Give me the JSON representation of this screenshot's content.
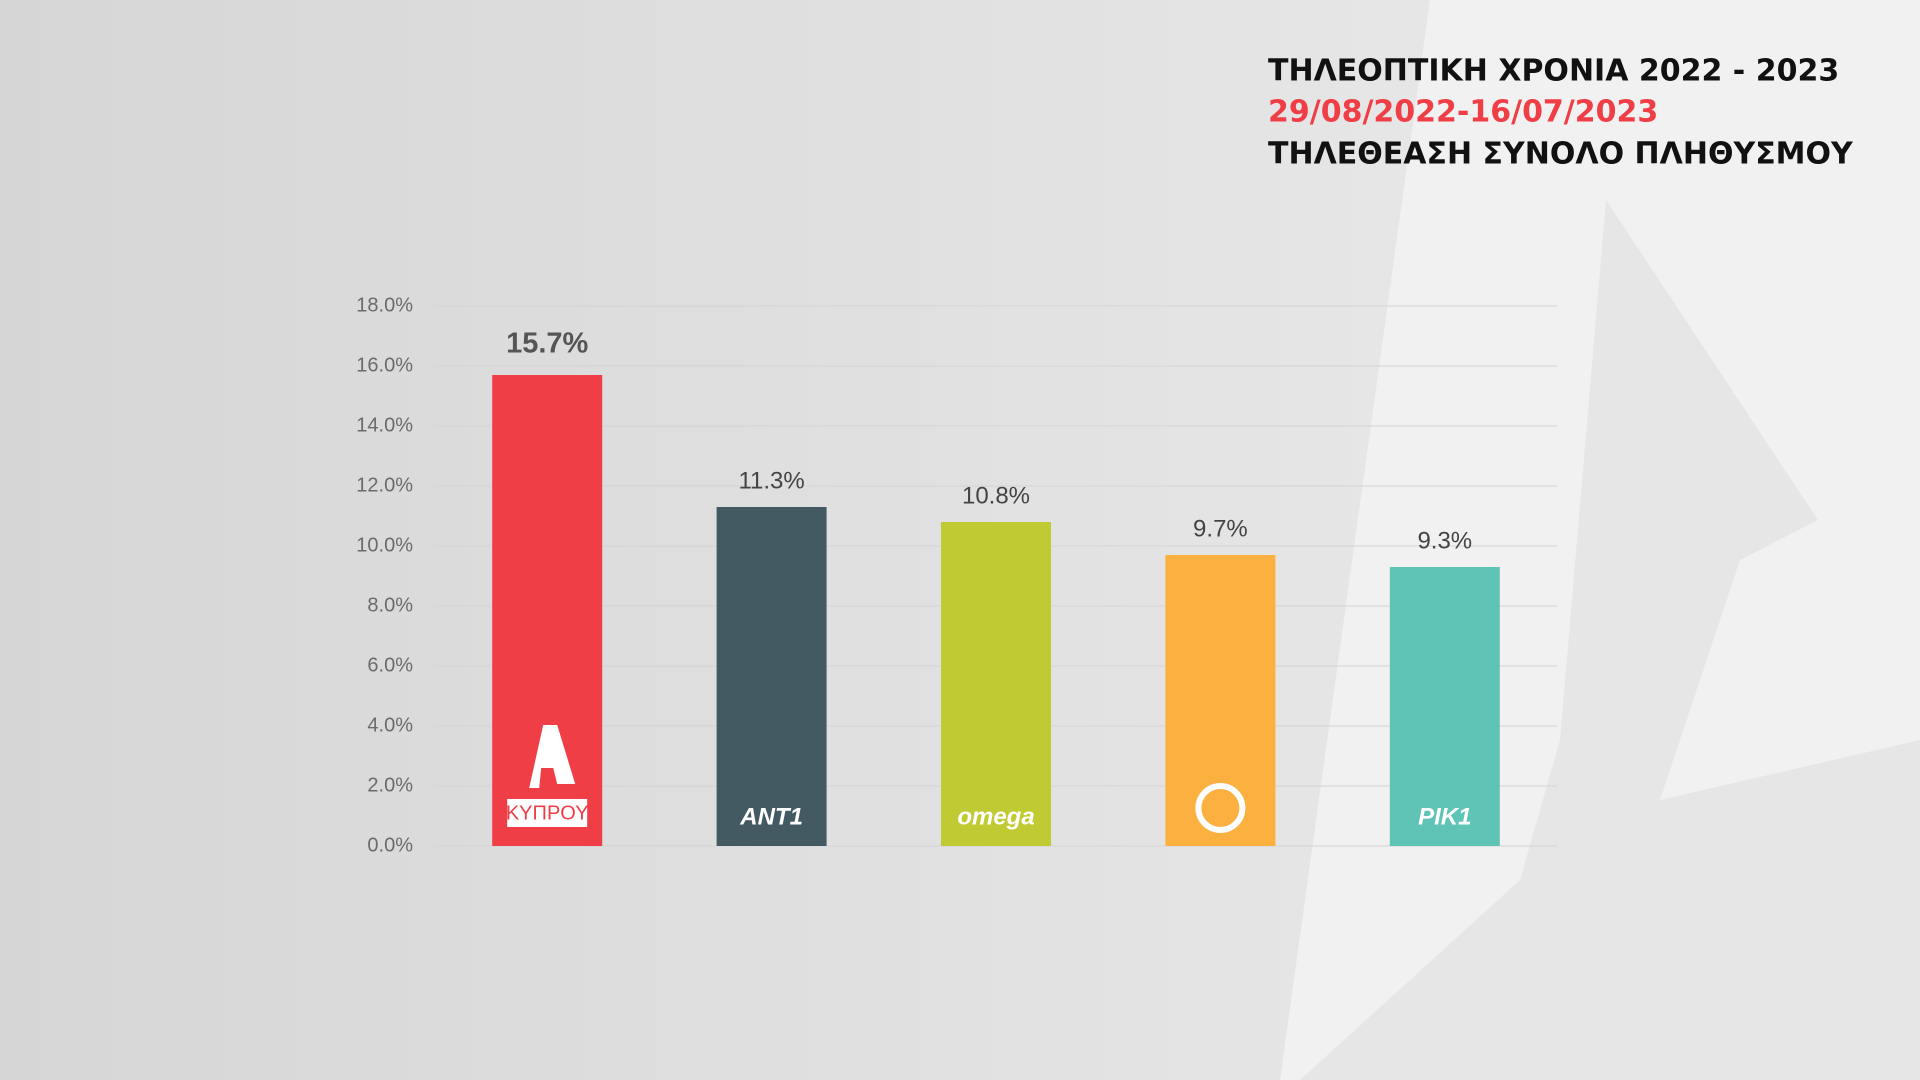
{
  "chart_data": {
    "type": "bar",
    "title": "ΤΗΛΕΟΠΤΙΚΗ ΧΡΟΝΙΑ 2022 - 2023",
    "subtitle": "29/08/2022-16/07/2023",
    "caption": "ΤΗΛΕΘΕΑΣΗ ΣΥΝΟΛΟ ΠΛΗΘΥΣΜΟΥ",
    "categories": [
      "ΚΥΠΡΟΥ",
      "ANT1",
      "omega",
      null,
      "ΡΙΚ1"
    ],
    "values": [
      15.7,
      11.3,
      10.8,
      9.7,
      9.3
    ],
    "value_labels": [
      "15.7%",
      "11.3%",
      "10.8%",
      "9.7%",
      "9.3%"
    ],
    "colors": [
      "#ef3e46",
      "#445a63",
      "#c0cb33",
      "#fbb040",
      "#5fc4b5"
    ],
    "subtitle_color": "#ef3e46",
    "ylim": [
      0,
      18
    ],
    "yticks": [
      {
        "value": 0,
        "label": "0.0%"
      },
      {
        "value": 2,
        "label": "2.0%"
      },
      {
        "value": 4,
        "label": "4.0%"
      },
      {
        "value": 6,
        "label": "6.0%"
      },
      {
        "value": 8,
        "label": "8.0%"
      },
      {
        "value": 10,
        "label": "10.0%"
      },
      {
        "value": 12,
        "label": "12.0%"
      },
      {
        "value": 14,
        "label": "14.0%"
      },
      {
        "value": 16,
        "label": "16.0%"
      },
      {
        "value": 18,
        "label": "18.0%"
      }
    ],
    "grid": true
  }
}
